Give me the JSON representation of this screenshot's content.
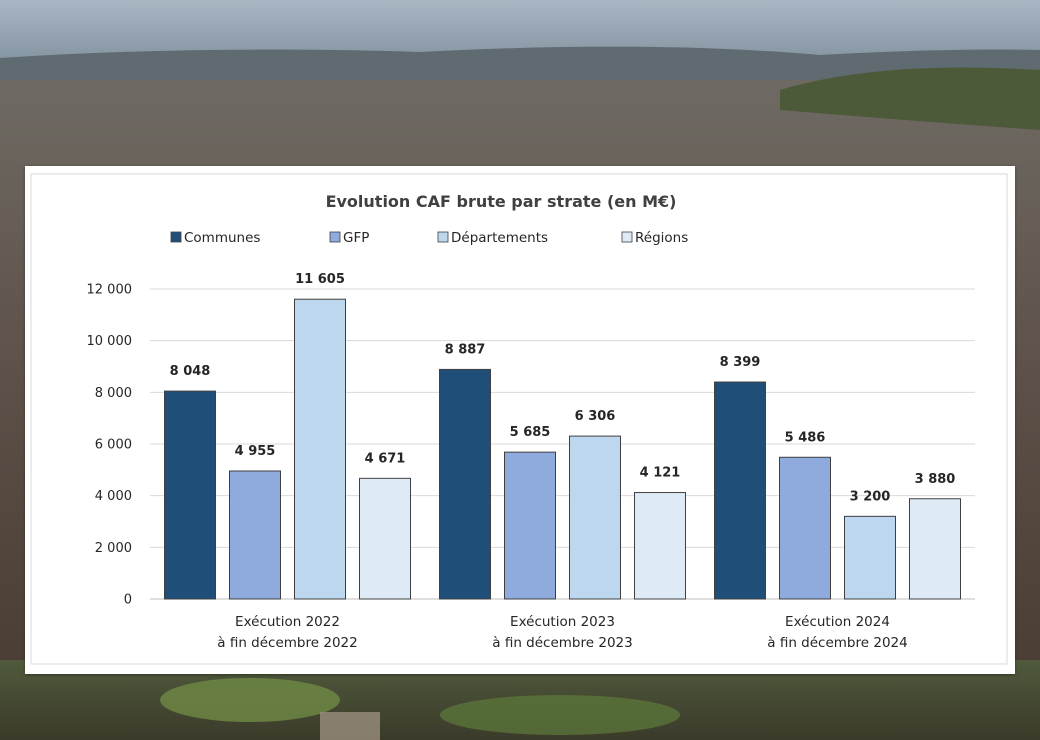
{
  "colors": {
    "communes": "#1f4e79",
    "gfp": "#8faadc",
    "departements": "#bdd7ee",
    "regions": "#deebf7",
    "gridline": "#d9d9d9",
    "bar_border": "#404040"
  },
  "chart_data": {
    "type": "bar",
    "title": "Evolution CAF brute par strate (en M€)",
    "xlabel": "",
    "ylabel": "",
    "ylim": [
      0,
      12000
    ],
    "yticks": [
      0,
      2000,
      4000,
      6000,
      8000,
      10000,
      12000
    ],
    "ytick_labels": [
      "0",
      "2 000",
      "4 000",
      "6 000",
      "8 000",
      "10 000",
      "12 000"
    ],
    "grid": true,
    "legend_position": "top",
    "categories": [
      [
        "Exécution 2022",
        "à fin décembre 2022"
      ],
      [
        "Exécution 2023",
        "à fin décembre 2023"
      ],
      [
        "Exécution 2024",
        "à fin décembre 2024"
      ]
    ],
    "series": [
      {
        "name": "Communes",
        "color_key": "communes",
        "values": [
          8048,
          8887,
          8399
        ],
        "labels": [
          "8 048",
          "8 887",
          "8 399"
        ]
      },
      {
        "name": "GFP",
        "color_key": "gfp",
        "values": [
          4955,
          5685,
          5486
        ],
        "labels": [
          "4 955",
          "5 685",
          "5 486"
        ]
      },
      {
        "name": "Départements",
        "color_key": "departements",
        "values": [
          11605,
          6306,
          3200
        ],
        "labels": [
          "11 605",
          "6 306",
          "3 200"
        ]
      },
      {
        "name": "Régions",
        "color_key": "regions",
        "values": [
          4671,
          4121,
          3880
        ],
        "labels": [
          "4 671",
          "4 121",
          "3 880"
        ]
      }
    ]
  }
}
